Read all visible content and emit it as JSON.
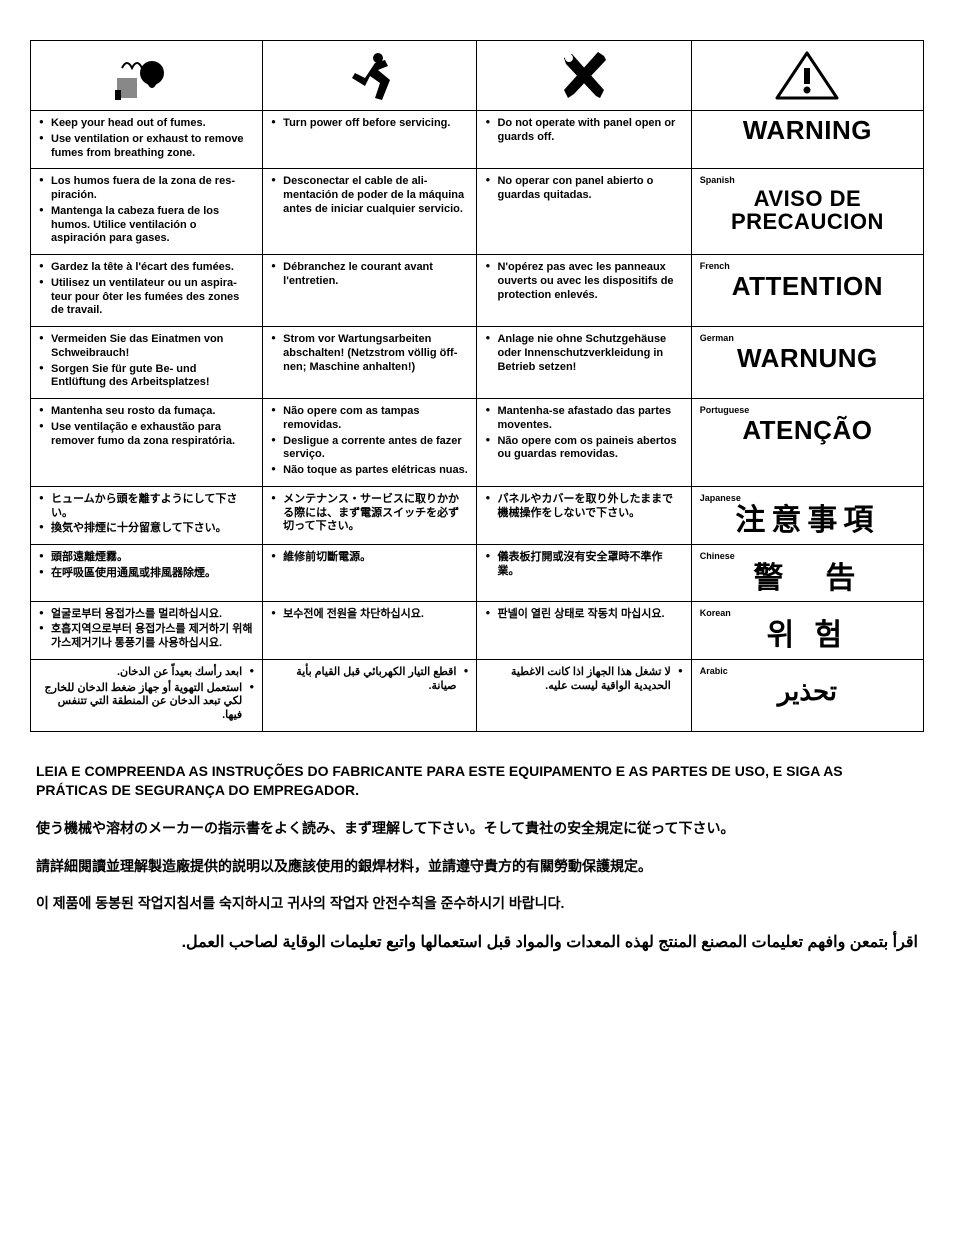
{
  "icons": [
    "fumes-head-icon",
    "running-person-icon",
    "tools-crossed-icon",
    "warning-triangle-icon"
  ],
  "rows": [
    {
      "lang": "",
      "fumes": [
        "Keep your head out of fumes.",
        "Use ventilation or exhaust to remove fumes from breathing zone."
      ],
      "power": [
        "Turn power off before servicing."
      ],
      "panel": [
        "Do not operate with panel open or guards off."
      ],
      "warning": "WARNING",
      "warning_size": "w-lg"
    },
    {
      "lang": "Spanish",
      "fumes": [
        "Los humos fuera de la zona de res-piración.",
        "Mantenga la cabeza fuera de los humos. Utilice ventilación o aspiración para gases."
      ],
      "power": [
        "Desconectar el cable de ali-mentación de poder de la máquina antes de iniciar cualquier servicio."
      ],
      "panel": [
        "No operar con panel abierto o guardas quitadas."
      ],
      "warning": "AVISO DE PRECAUCION",
      "warning_size": "w-md"
    },
    {
      "lang": "French",
      "fumes": [
        "Gardez la tête à l'écart des fumées.",
        "Utilisez un ventilateur ou un aspira-teur pour ôter les fumées des zones de travail."
      ],
      "power": [
        "Débranchez le courant avant l'entretien."
      ],
      "panel": [
        "N'opérez pas avec les panneaux ouverts ou avec les dispositifs de protection enlevés."
      ],
      "warning": "ATTENTION",
      "warning_size": "w-lg"
    },
    {
      "lang": "German",
      "fumes": [
        "Vermeiden Sie das Einatmen von Schweibrauch!",
        "Sorgen Sie für gute Be- und Entlüftung des Arbeitsplatzes!"
      ],
      "power": [
        "Strom vor Wartungsarbeiten abschalten! (Netzstrom völlig öff-nen; Maschine anhalten!)"
      ],
      "panel": [
        "Anlage nie ohne Schutzgehäuse oder Innenschutzverkleidung in Betrieb setzen!"
      ],
      "warning": "WARNUNG",
      "warning_size": "w-lg"
    },
    {
      "lang": "Portuguese",
      "fumes": [
        "Mantenha seu rosto da fumaça.",
        "Use ventilação e exhaustão para remover fumo da zona respiratória."
      ],
      "power": [
        "Não opere com as tampas removidas.",
        "Desligue a corrente antes de fazer serviço.",
        "Não toque as partes elétricas nuas."
      ],
      "panel": [
        "Mantenha-se afastado das partes moventes.",
        "Não opere com os paineis abertos ou guardas removidas."
      ],
      "warning": "ATENÇÃO",
      "warning_size": "w-lg"
    },
    {
      "lang": "Japanese",
      "fumes": [
        "ヒュームから頭を離すようにして下さい。",
        "換気や排煙に十分留意して下さい。"
      ],
      "power": [
        "メンテナンス・サービスに取りかかる際には、まず電源スイッチを必ず切って下さい。"
      ],
      "panel": [
        "パネルやカバーを取り外したままで機械操作をしないで下さい。"
      ],
      "warning": "注意事項",
      "warning_size": "w-cjk"
    },
    {
      "lang": "Chinese",
      "fumes": [
        "頭部遠離煙霧。",
        "在呼吸區使用通風或排風器除煙。"
      ],
      "power": [
        "維修前切斷電源。"
      ],
      "panel": [
        "儀表板打開或沒有安全罩時不準作業。"
      ],
      "warning": "警　告",
      "warning_size": "w-cjk"
    },
    {
      "lang": "Korean",
      "fumes": [
        "얼굴로부터 용접가스를 멀리하십시요.",
        "호흡지역으로부터 용접가스를 제거하기 위해 가스제거기나 통풍기를 사용하십시요."
      ],
      "power": [
        "보수전에 전원을 차단하십시요."
      ],
      "panel": [
        "판넬이 열린 상태로 작동치 마십시요."
      ],
      "warning": "위 험",
      "warning_size": "w-cjk"
    },
    {
      "lang": "Arabic",
      "rtl": true,
      "fumes": [
        "ابعد رأسك بعيداً عن الدخان.",
        "استعمل التهوية أو جهاز ضغط الدخان للخارج لكي تبعد الدخان عن المنطقة التي تتنفس فيها."
      ],
      "power": [
        "اقطع التيار الكهربائي قبل القيام بأية صيانة."
      ],
      "panel": [
        "لا تشغل هذا الجهاز اذا كانت الاغطية الحديدية الواقية ليست عليه."
      ],
      "warning": "تحذير",
      "warning_size": "w-ar"
    }
  ],
  "footer": [
    "LEIA E COMPREENDA AS INSTRUÇÕES DO FABRICANTE PARA ESTE EQUIPAMENTO E AS PARTES DE USO, E SIGA AS PRÁTICAS DE SEGURANÇA DO EMPREGADOR.",
    "使う機械や溶材のメーカーの指示書をよく読み、まず理解して下さい。そして貴社の安全規定に従って下さい。",
    "請詳細閱讀並理解製造廠提供的説明以及應該使用的銀焊材料，並請遵守貴方的有關勞動保護規定。",
    "이 제품에 동봉된 작업지침서를 숙지하시고 귀사의 작업자 안전수칙을 준수하시기 바랍니다.",
    "اقرأ بتمعن وافهم تعليمات المصنع المنتج لهذه المعدات والمواد قبل استعمالها واتبع تعليمات الوقاية لصاحب العمل."
  ]
}
